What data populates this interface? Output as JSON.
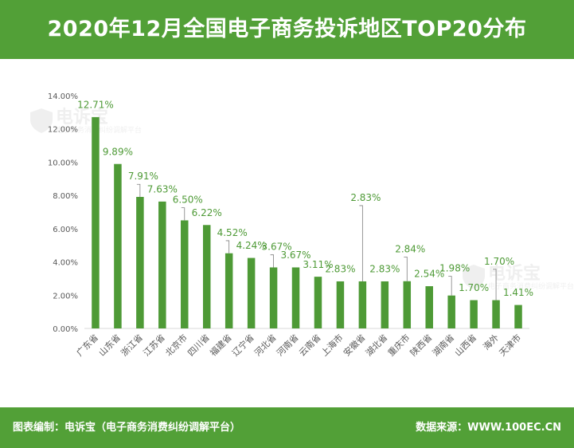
{
  "header": {
    "title": "2020年12月全国电子商务投诉地区TOP20分布"
  },
  "footer": {
    "left": "图表编制：电诉宝（电子商务消费纠纷调解平台）",
    "right": "数据来源：WWW.100EC.CN"
  },
  "watermark": {
    "brand": "电诉宝",
    "subtitle": "电子商务消费纠纷调解平台"
  },
  "colors": {
    "bar": "#4E9A36",
    "label": "#4E9A36",
    "header": "#52A037",
    "tick": "#595959",
    "axis": "#D9D9D9",
    "leader": "#7F7F7F"
  },
  "chart_data": {
    "type": "bar",
    "categories": [
      "广东省",
      "山东省",
      "浙江省",
      "江苏省",
      "北京市",
      "四川省",
      "福建省",
      "辽宁省",
      "河北省",
      "河南省",
      "云南省",
      "上海市",
      "安徽省",
      "湖北省",
      "重庆市",
      "陕西省",
      "湖南省",
      "山西省",
      "海外",
      "天津市"
    ],
    "values": [
      12.71,
      9.89,
      7.91,
      7.63,
      6.5,
      6.22,
      4.52,
      4.24,
      3.67,
      3.67,
      3.11,
      2.83,
      2.83,
      2.83,
      2.84,
      2.54,
      1.98,
      1.7,
      1.7,
      1.41
    ],
    "data_labels": [
      "12.71%",
      "9.89%",
      "7.91%",
      "7.63%",
      "6.50%",
      "6.22%",
      "4.52%",
      "4.24%",
      "3.67%",
      "3.67%",
      "3.11%",
      "2.83%",
      "2.83%",
      "2.83%",
      "2.84%",
      "2.54%",
      "1.98%",
      "1.70%",
      "1.70%",
      "1.41%"
    ],
    "ylim": [
      0,
      14
    ],
    "yticks": [
      0,
      2,
      4,
      6,
      8,
      10,
      12,
      14
    ],
    "ytick_labels": [
      "0.00%",
      "2.00%",
      "4.00%",
      "6.00%",
      "8.00%",
      "10.00%",
      "12.00%",
      "14.00%"
    ],
    "ylabel": "",
    "xlabel": "",
    "grid": false,
    "legend": "none"
  }
}
